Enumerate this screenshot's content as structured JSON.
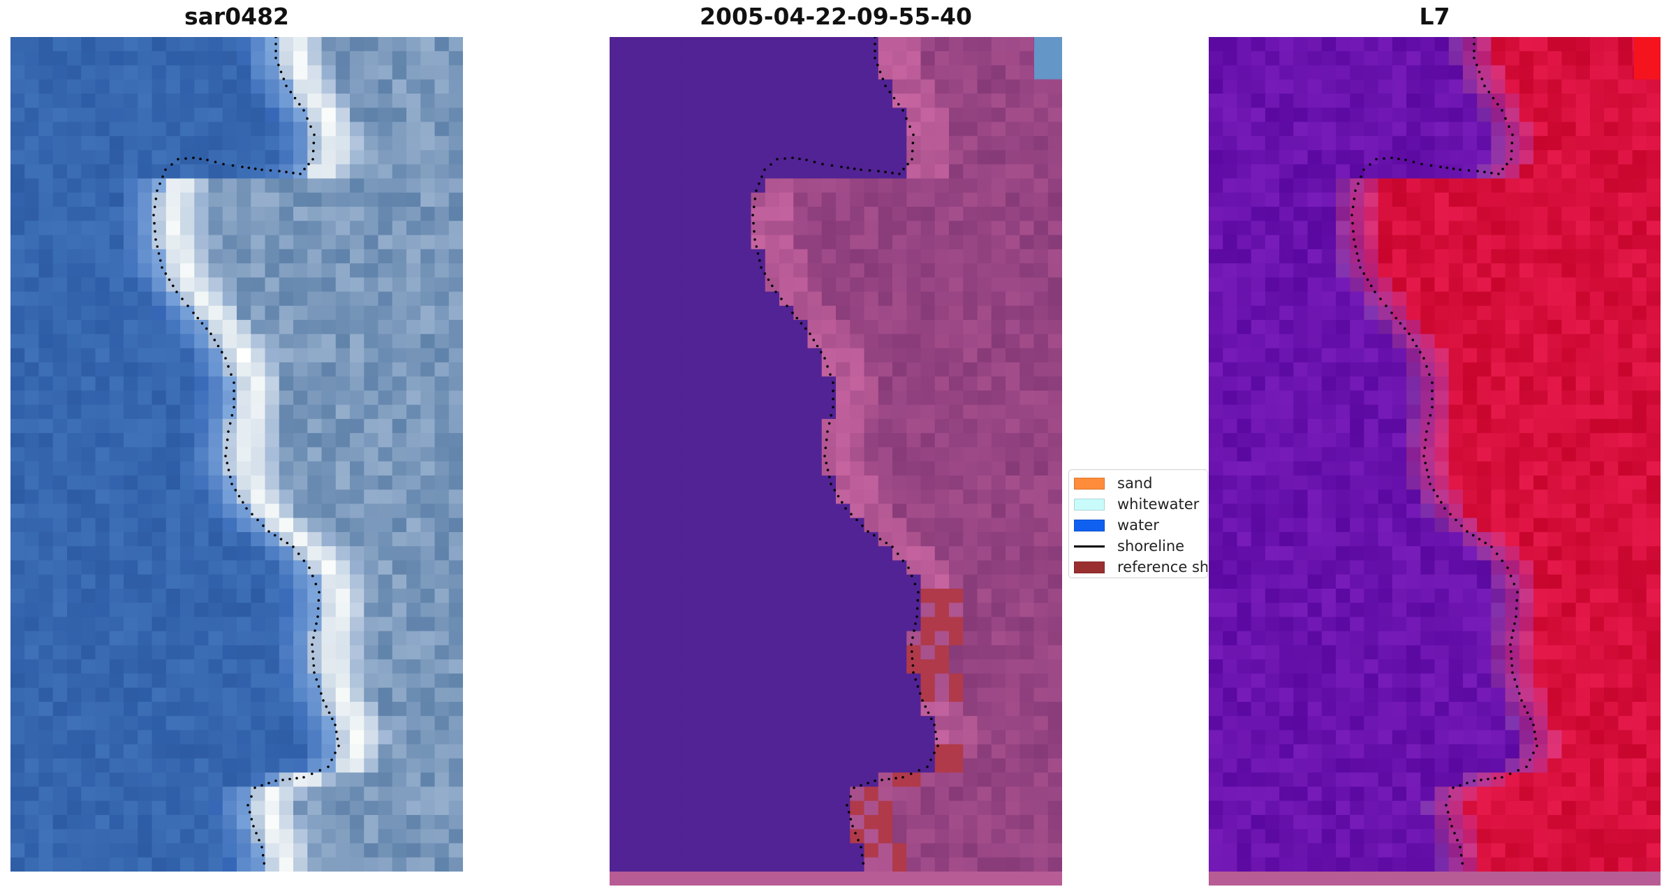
{
  "panels": {
    "left": {
      "title": "sar0482"
    },
    "middle": {
      "title": "2005-04-22-09-55-40"
    },
    "right": {
      "title": "L7"
    }
  },
  "legend": {
    "items": [
      {
        "label": "sand",
        "color": "#ff8c3a"
      },
      {
        "label": "whitewater",
        "color": "#c9fbfb"
      },
      {
        "label": "water",
        "color": "#1060f0"
      },
      {
        "label": "shoreline",
        "color": "#000000"
      },
      {
        "label": "reference sh",
        "color": "#9a2f2f"
      }
    ]
  },
  "colors": {
    "classified_water": "#522394",
    "classified_land": "#8e3f7c",
    "classified_reference": "#b03a4a",
    "index_low": "#5a0aa0",
    "index_high": "#c8002a",
    "bottom_strip": "#b85c95"
  }
}
